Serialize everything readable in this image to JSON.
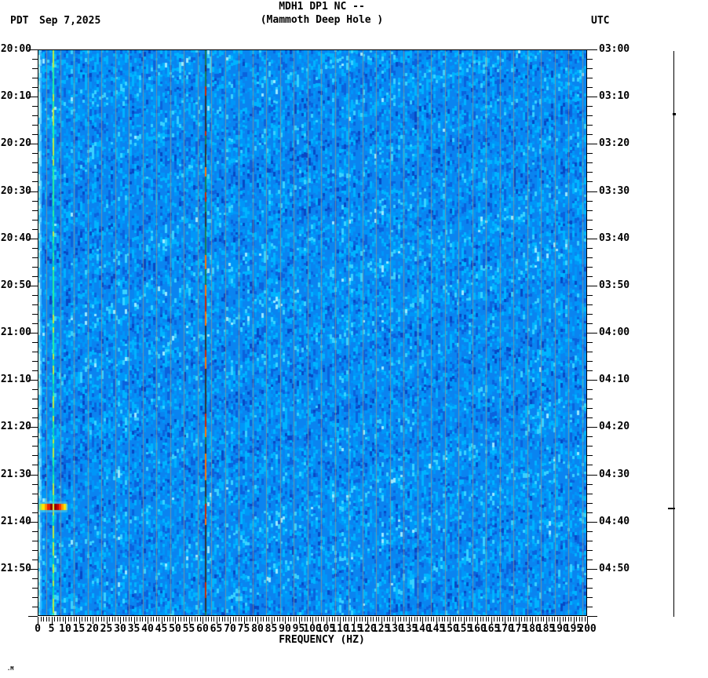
{
  "header": {
    "title_line1": "MDH1 DP1 NC --",
    "title_line2": "(Mammoth Deep Hole )",
    "timezone_left": "PDT",
    "date": "Sep 7,2025",
    "timezone_right": "UTC"
  },
  "footer": {
    "corner_mark": ".M"
  },
  "chart_data": {
    "type": "heatmap",
    "title": "MDH1 DP1 NC --",
    "subtitle": "(Mammoth Deep Hole )",
    "station": "MDH1 DP1 NC (Mammoth Deep Hole)",
    "xlabel": "FREQUENCY (HZ)",
    "x_range_hz": [
      0,
      200
    ],
    "x_major_tick_step_hz": 5,
    "x_minor_tick_step_hz": 1,
    "x_tick_labels": [
      "0",
      "5",
      "10",
      "15",
      "20",
      "25",
      "30",
      "35",
      "40",
      "45",
      "50",
      "55",
      "60",
      "65",
      "70",
      "75",
      "80",
      "85",
      "90",
      "95",
      "100",
      "105",
      "110",
      "115",
      "120",
      "125",
      "130",
      "135",
      "140",
      "145",
      "150",
      "155",
      "160",
      "165",
      "170",
      "175",
      "180",
      "185",
      "190",
      "195",
      "200"
    ],
    "time_axis": {
      "left_timezone": "PDT",
      "right_timezone": "UTC",
      "date": "Sep 7,2025",
      "span_min": 120,
      "label_step_min": 10,
      "minor_tick_step_min": 2,
      "left_labels": [
        "20:00",
        "20:10",
        "20:20",
        "20:30",
        "20:40",
        "20:50",
        "21:00",
        "21:10",
        "21:20",
        "21:30",
        "21:40",
        "21:50"
      ],
      "right_labels": [
        "03:00",
        "03:10",
        "03:20",
        "03:30",
        "03:40",
        "03:50",
        "04:00",
        "04:10",
        "04:20",
        "04:30",
        "04:40",
        "04:50"
      ]
    },
    "value_scale": "relative spectral power: blue=low, cyan=moderate, yellow/red/dark-red=high",
    "palette": {
      "base": "#0a84f0",
      "dark1": "#0748c4",
      "dark2": "#0b62dd",
      "mid": "#0096f8",
      "light1": "#00b4ff",
      "light2": "#39d2ff",
      "bright": "#9be9ff",
      "gridline": "#8d948f",
      "edge_band": [
        "#7ee6ff",
        "#b9f4ff",
        "#4ecbff"
      ],
      "tonal_line": [
        "#2df09a",
        "#b9ef3f",
        "#0cd2b4"
      ],
      "mains_line": [
        "#cc2a00",
        "#ff7300",
        "#333333",
        "#1e7a50"
      ],
      "event_hot": [
        "#9fe857",
        "#ffe400",
        "#ff8c00",
        "#ee2200",
        "#8e0000",
        "#c40000",
        "#ff3300",
        "#ff9900",
        "#ffe400",
        "#7fd9a8"
      ]
    },
    "persistent_features": [
      {
        "name": "low-frequency-band",
        "freq_hz": [
          0,
          1.5
        ],
        "desc": "bright cyan band at left edge, continuous all times"
      },
      {
        "name": "tonal-line",
        "freq_hz": 5.5,
        "desc": "narrow bright green/yellow tonal line, continuous all times"
      },
      {
        "name": "mains-hum-line",
        "freq_hz": 60.9,
        "desc": "dark vertical line with red/orange patches (power-line hum)"
      },
      {
        "name": "gridlines",
        "desc": "faint gray vertical gridlines about every 5 Hz"
      },
      {
        "name": "diagonal-striations",
        "desc": "faint lighter cyan diagonal streaks sloping up to the right across the band"
      }
    ],
    "events": [
      {
        "name": "seismic-event-burst",
        "time_pdt": "21:37",
        "time_utc": "04:37",
        "start_min_after_2000": 96.2,
        "duration_min": 1.4,
        "freq_band_hz": [
          1,
          10
        ],
        "intensity": "strong: yellow-orange-red-dark red streak"
      }
    ],
    "trace": {
      "desc": "vertical seismogram trace at right margin, flat with small blips at event times",
      "blip_times_min_after_2000": [
        13.1,
        96.8
      ]
    }
  }
}
